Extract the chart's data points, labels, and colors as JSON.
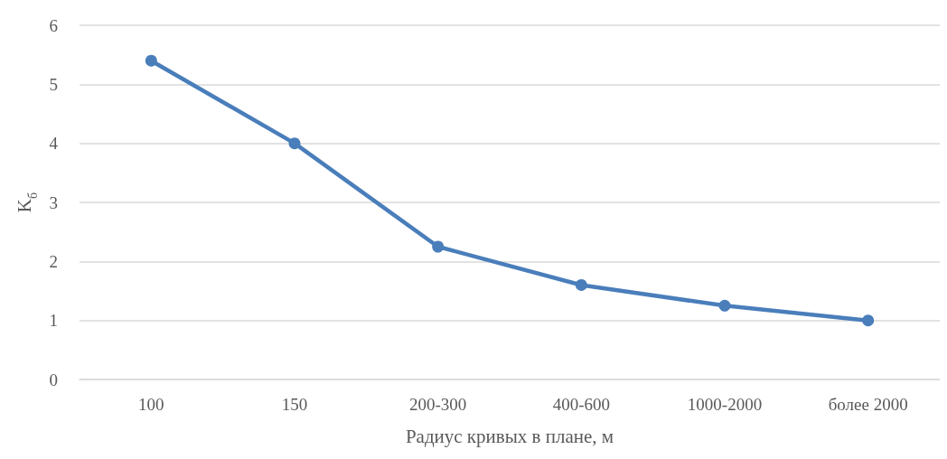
{
  "chart_data": {
    "type": "line",
    "xlabel": "Радиус кривых в плане, м",
    "ylabel": "K$_{б}$",
    "categories": [
      "100",
      "150",
      "200-300",
      "400-600",
      "1000-2000",
      "более 2000"
    ],
    "series": [
      {
        "color": "#4a7ebb",
        "values": [
          5.4,
          4,
          2.25,
          1.6,
          1.25,
          1
        ]
      }
    ],
    "ylim": [
      0,
      6
    ],
    "yticks": [
      0,
      1,
      2,
      3,
      4,
      5,
      6
    ],
    "grid": "y",
    "marker": "circle",
    "line_style": "solid"
  }
}
